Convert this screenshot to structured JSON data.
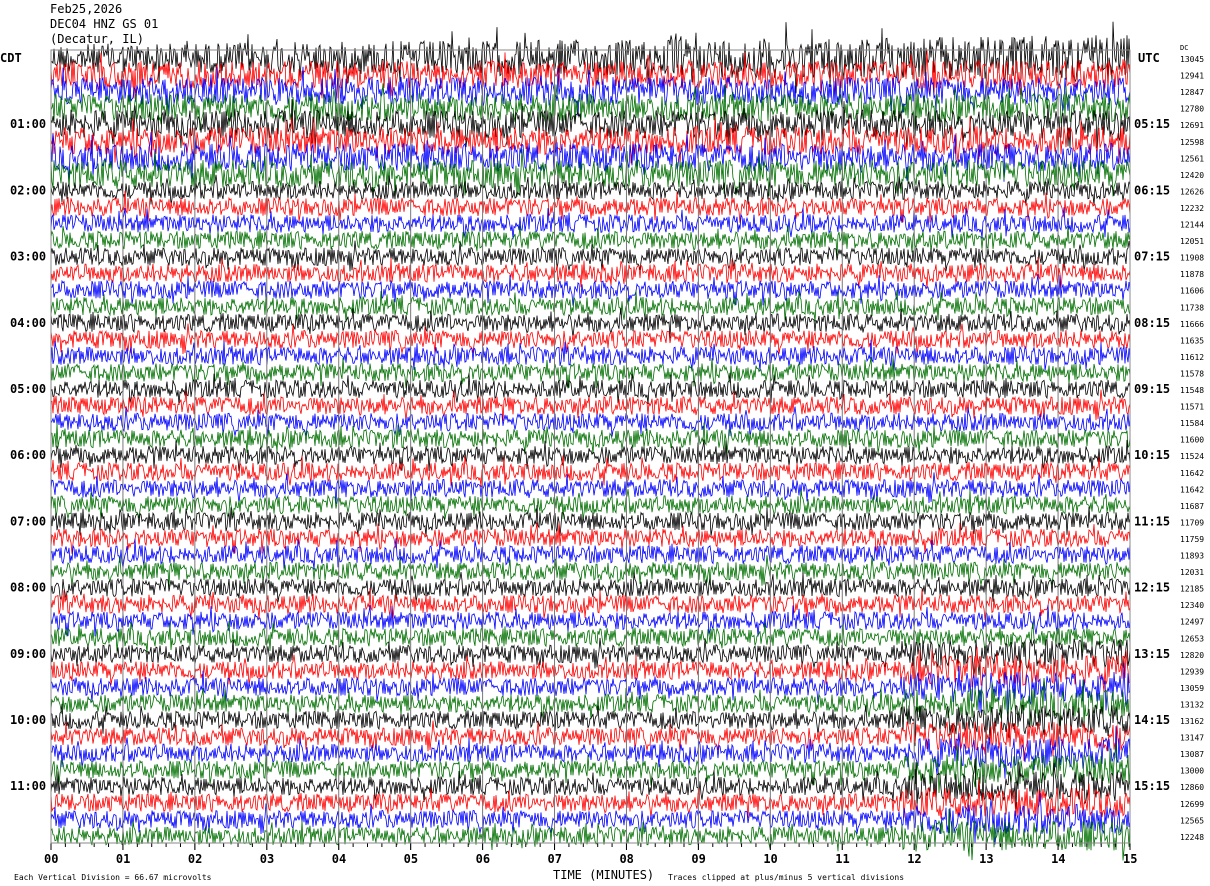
{
  "chart_data": {
    "type": "line",
    "subtype": "helicorder",
    "title_lines": [
      "Feb25,2026",
      "DEC04 HNZ GS 01",
      "(Decatur, IL)"
    ],
    "left_timezone": "CDT",
    "right_timezone": "UTC",
    "dc_header": "DC",
    "left_hour_labels": [
      "01:00",
      "02:00",
      "03:00",
      "04:00",
      "05:00",
      "06:00",
      "07:00",
      "08:00",
      "09:00",
      "10:00",
      "11:00"
    ],
    "right_hour_labels": [
      "05:15",
      "06:15",
      "07:15",
      "08:15",
      "09:15",
      "10:15",
      "11:15",
      "12:15",
      "13:15",
      "14:15",
      "15:15"
    ],
    "dc_offsets": [
      "13045",
      "12941",
      "12847",
      "12780",
      "12691",
      "12598",
      "12561",
      "12420",
      "12626",
      "12232",
      "12144",
      "12051",
      "11908",
      "11878",
      "11606",
      "11738",
      "11666",
      "11635",
      "11612",
      "11578",
      "11548",
      "11571",
      "11584",
      "11600",
      "11524",
      "11642",
      "11642",
      "11687",
      "11709",
      "11759",
      "11893",
      "12031",
      "12185",
      "12340",
      "12497",
      "12653",
      "12820",
      "12939",
      "13059",
      "13132",
      "13162",
      "13147",
      "13087",
      "13000",
      "12860",
      "12699",
      "12565",
      "12248"
    ],
    "trace_colors": [
      "#000000",
      "#ff0000",
      "#0000ff",
      "#007000"
    ],
    "minutes_per_line": 15,
    "x_ticks": [
      "00",
      "01",
      "02",
      "03",
      "04",
      "05",
      "06",
      "07",
      "08",
      "09",
      "10",
      "11",
      "12",
      "13",
      "14",
      "15"
    ],
    "xlabel": "TIME (MINUTES)",
    "xlim": [
      0,
      15
    ],
    "scale_note": "Each Vertical Division =    66.67 microvolts",
    "clip_note": "Traces clipped at plus/minus 5 vertical divisions",
    "grid": true
  }
}
